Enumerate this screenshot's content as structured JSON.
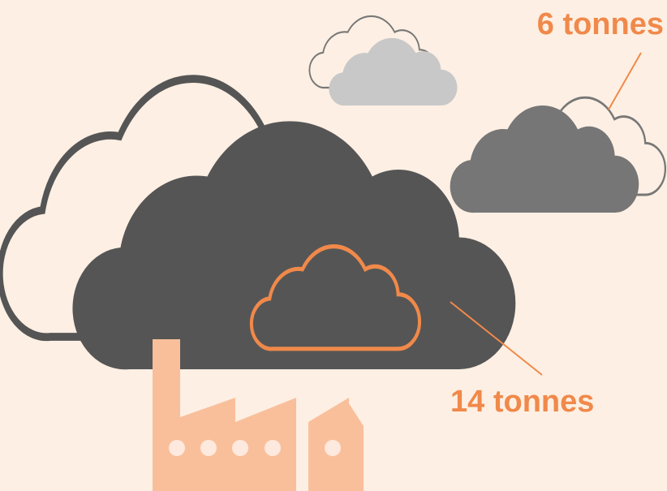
{
  "annotations": [
    {
      "label": "6 tonnes"
    },
    {
      "label": "14 tonnes"
    }
  ]
}
